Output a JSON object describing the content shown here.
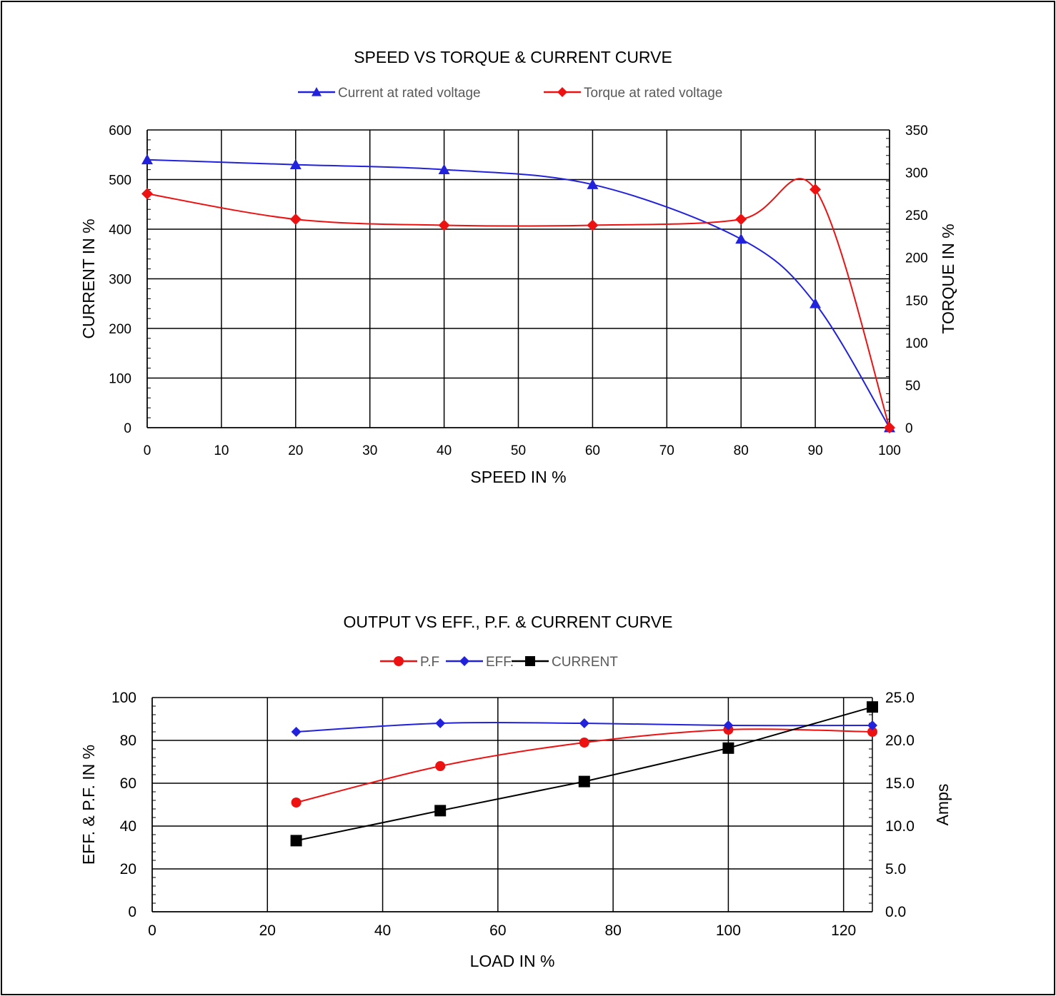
{
  "chart_data": [
    {
      "type": "line",
      "title": "SPEED VS TORQUE & CURRENT CURVE",
      "xlabel": "SPEED IN %",
      "ylabel": "CURRENT IN %",
      "y2label": "TORQUE IN %",
      "xlim": [
        0,
        100
      ],
      "ylim": [
        0,
        600
      ],
      "y2lim": [
        0,
        350
      ],
      "xticks": [
        "0",
        "10",
        "20",
        "30",
        "40",
        "50",
        "60",
        "70",
        "80",
        "90",
        "100"
      ],
      "yticks": [
        "0",
        "100",
        "200",
        "300",
        "400",
        "500",
        "600"
      ],
      "y2ticks": [
        "0",
        "50",
        "100",
        "150",
        "200",
        "250",
        "300",
        "350"
      ],
      "grid": true,
      "legend": "top",
      "series": [
        {
          "name": "Current at rated voltage",
          "axis": "left",
          "color": "#2222dd",
          "marker": "triangle",
          "x": [
            0,
            20,
            40,
            60,
            80,
            90,
            100
          ],
          "y": [
            540,
            530,
            520,
            490,
            380,
            250,
            0
          ]
        },
        {
          "name": "Torque at rated voltage",
          "axis": "right",
          "color": "#ee1111",
          "marker": "diamond",
          "x": [
            0,
            20,
            40,
            60,
            80,
            90,
            100
          ],
          "y": [
            275,
            245,
            238,
            238,
            245,
            280,
            0
          ]
        }
      ]
    },
    {
      "type": "line",
      "title": "OUTPUT VS EFF., P.F. & CURRENT CURVE",
      "xlabel": "LOAD IN %",
      "ylabel": "EFF. & P.F. IN %",
      "y2label": "Amps",
      "xlim": [
        0,
        125
      ],
      "ylim": [
        0,
        100
      ],
      "y2lim": [
        0,
        25
      ],
      "xticks": [
        "0",
        "20",
        "40",
        "60",
        "80",
        "100",
        "120"
      ],
      "yticks": [
        "0",
        "20",
        "40",
        "60",
        "80",
        "100"
      ],
      "y2ticks": [
        "0.0",
        "5.0",
        "10.0",
        "15.0",
        "20.0",
        "25.0"
      ],
      "grid": true,
      "legend": "top",
      "series": [
        {
          "name": "P.F",
          "axis": "left",
          "color": "#ee1111",
          "marker": "circle",
          "x": [
            25,
            50,
            75,
            100,
            125
          ],
          "y": [
            51,
            68,
            79,
            85,
            84
          ]
        },
        {
          "name": "EFF.",
          "axis": "left",
          "color": "#2222dd",
          "marker": "diamond",
          "x": [
            25,
            50,
            75,
            100,
            125
          ],
          "y": [
            84,
            88,
            88,
            87,
            87
          ]
        },
        {
          "name": "CURRENT",
          "axis": "right",
          "color": "#000000",
          "marker": "square",
          "x": [
            25,
            50,
            75,
            100,
            125
          ],
          "y": [
            8.3,
            11.8,
            15.2,
            19.1,
            23.9
          ]
        }
      ]
    }
  ]
}
